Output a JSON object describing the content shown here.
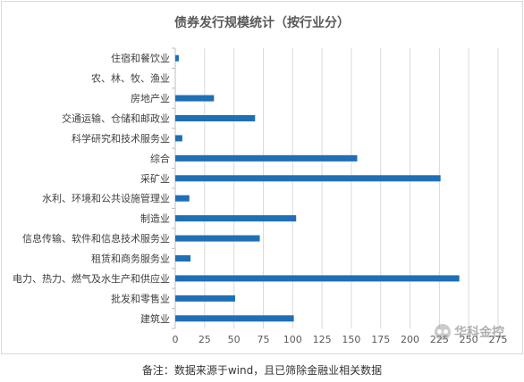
{
  "chart_data": {
    "type": "bar",
    "orientation": "horizontal",
    "title": "债券发行规模统计（按行业分）",
    "categories": [
      "住宿和餐饮业",
      "农、林、牧、渔业",
      "房地产业",
      "交通运输、仓储和邮政业",
      "科学研究和技术服务业",
      "综合",
      "采矿业",
      "水利、环境和公共设施管理业",
      "制造业",
      "信息传输、软件和信息技术服务业",
      "租赁和商务服务业",
      "电力、热力、燃气及水生产和供应业",
      "批发和零售业",
      "建筑业"
    ],
    "values": [
      3,
      0,
      33,
      68,
      6,
      155,
      226,
      12,
      103,
      72,
      13,
      242,
      51,
      101
    ],
    "xlim": [
      0,
      275
    ],
    "xticks": [
      "0",
      "25",
      "50",
      "75",
      "100",
      "125",
      "150",
      "175",
      "200",
      "225",
      "250",
      "275"
    ],
    "grid": "vertical",
    "legend": "none",
    "bar_color": "#1f6fb5"
  },
  "watermark": "华科金控",
  "footnote": "备注：数据来源于wind，且已筛除金融业相关数据"
}
